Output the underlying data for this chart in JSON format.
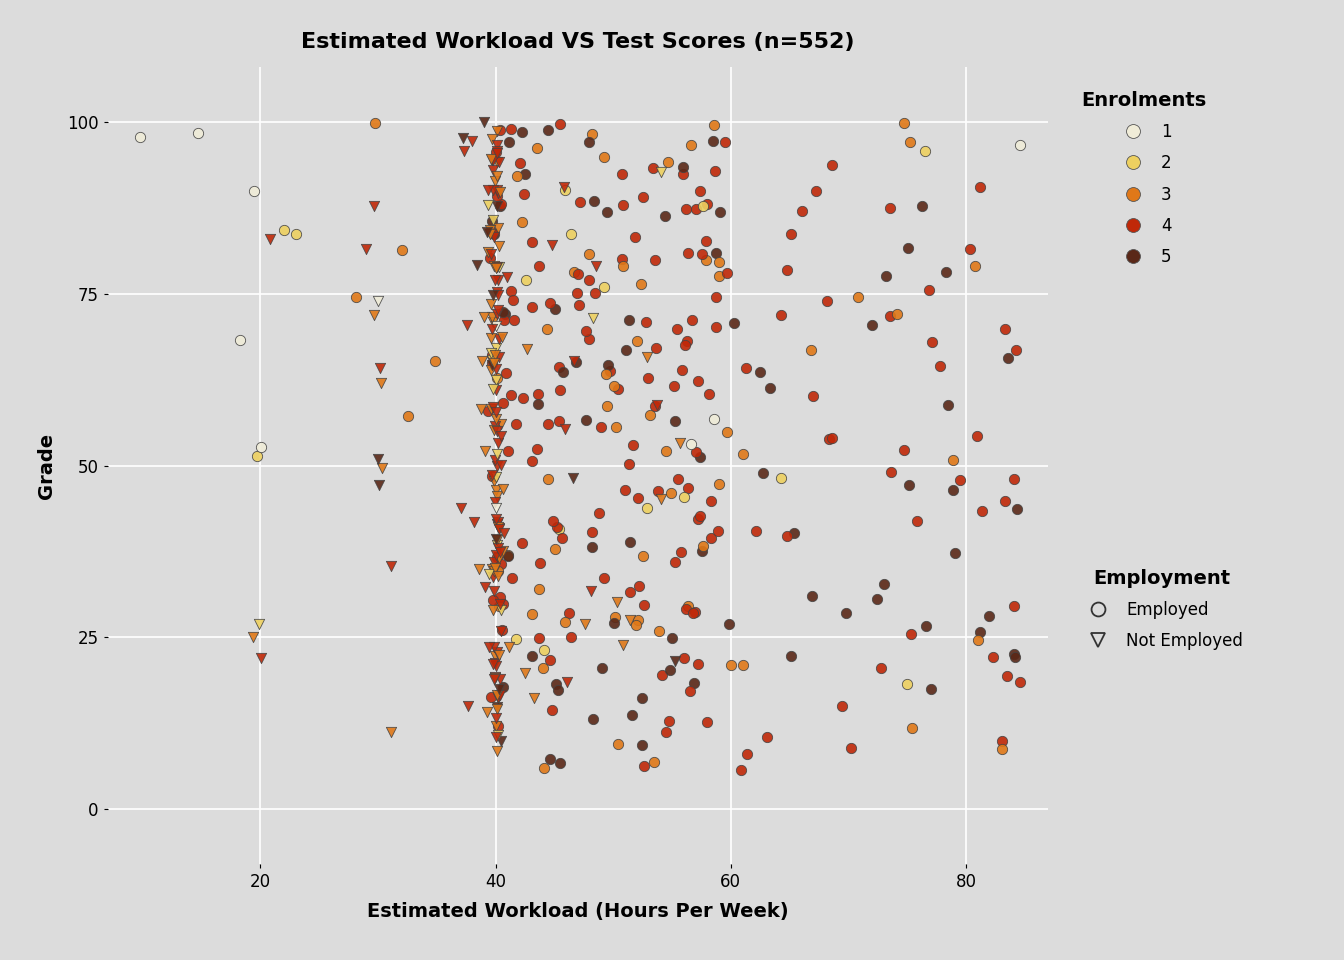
{
  "title": "Estimated Workload VS Test Scores (n=552)",
  "xlabel": "Estimated Workload (Hours Per Week)",
  "ylabel": "Grade",
  "xlim": [
    7,
    87
  ],
  "ylim": [
    -8,
    108
  ],
  "xticks": [
    20,
    40,
    60,
    80
  ],
  "yticks": [
    0,
    25,
    50,
    75,
    100
  ],
  "background_color": "#DCDCDC",
  "grid_color": "#FFFFFF",
  "enrolment_colors": {
    "1": "#F0ECD8",
    "2": "#EDD060",
    "3": "#E07818",
    "4": "#C02808",
    "5": "#5A2818"
  },
  "marker_size": 55,
  "marker_edge_color": "#444444",
  "marker_edge_width": 0.6,
  "seed": 42,
  "figwidth": 13.44,
  "figheight": 9.6,
  "dpi": 100
}
